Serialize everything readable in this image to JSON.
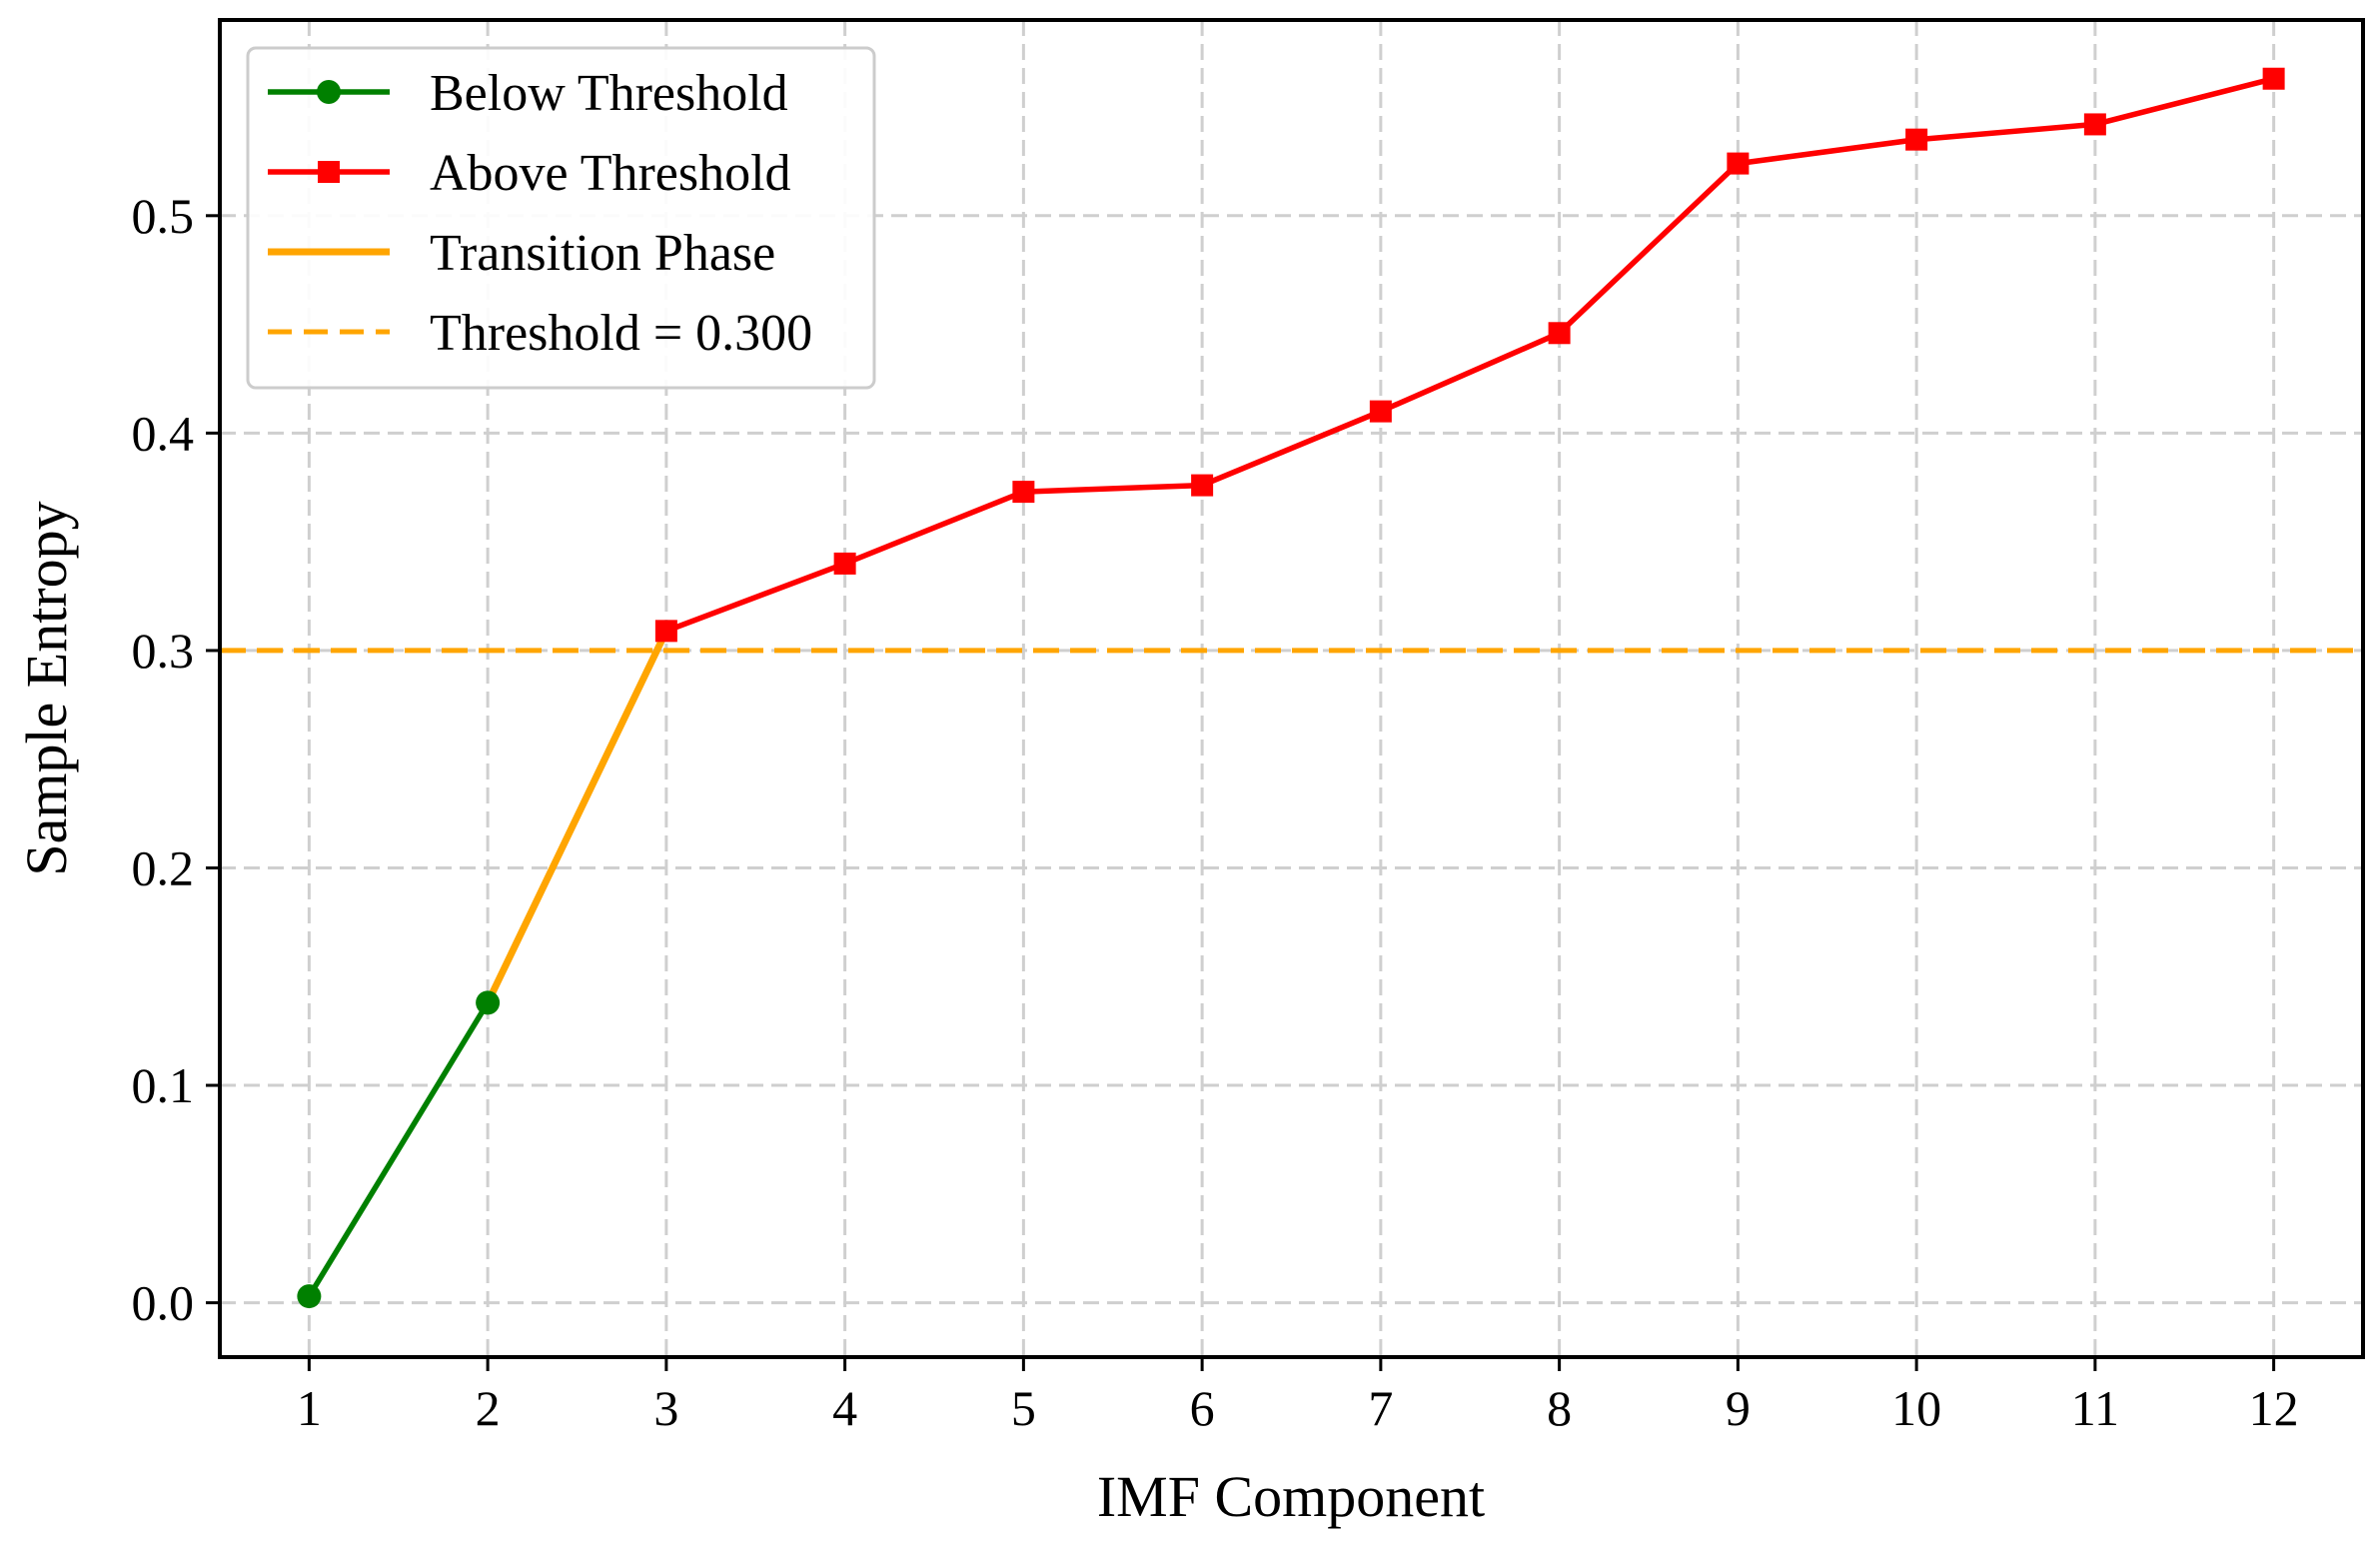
{
  "chart_data": {
    "type": "line",
    "xlabel": "IMF Component",
    "ylabel": "Sample Entropy",
    "xlim": [
      0.5,
      12.5
    ],
    "ylim": [
      -0.025,
      0.59
    ],
    "xticks": [
      1,
      2,
      3,
      4,
      5,
      6,
      7,
      8,
      9,
      10,
      11,
      12
    ],
    "yticks": [
      0.0,
      0.1,
      0.2,
      0.3,
      0.4,
      0.5
    ],
    "ytick_labels": [
      "0.0",
      "0.1",
      "0.2",
      "0.3",
      "0.4",
      "0.5"
    ],
    "grid": true,
    "legend_position": "top-left",
    "series": [
      {
        "name": "Below Threshold",
        "color": "#008000",
        "marker": "circle",
        "x": [
          1,
          2
        ],
        "values": [
          0.003,
          0.138
        ]
      },
      {
        "name": "Above Threshold",
        "color": "#ff0000",
        "marker": "square",
        "x": [
          3,
          4,
          5,
          6,
          7,
          8,
          9,
          10,
          11,
          12
        ],
        "values": [
          0.309,
          0.34,
          0.373,
          0.376,
          0.41,
          0.446,
          0.524,
          0.535,
          0.542,
          0.563
        ]
      },
      {
        "name": "Transition Phase",
        "color": "#ffa500",
        "marker": "none",
        "x": [
          2,
          3
        ],
        "values": [
          0.138,
          0.309
        ]
      }
    ],
    "threshold": {
      "name": "Threshold = 0.300",
      "value": 0.3,
      "color": "#ffa500",
      "style": "dashed"
    }
  }
}
